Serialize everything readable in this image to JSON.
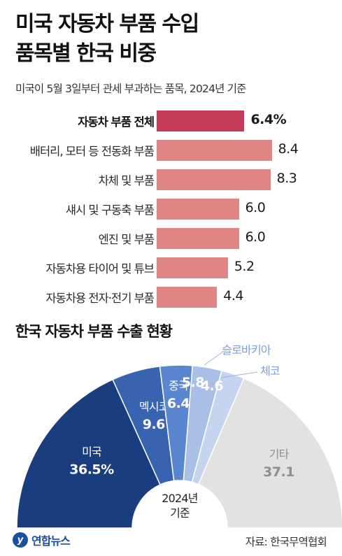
{
  "header": {
    "title_line1": "미국 자동차 부품 수입",
    "title_line2": "품목별 한국 비중",
    "subtitle": "미국이 5월 3일부터 관세 부과하는 품목, 2024년 기준"
  },
  "chart_data": [
    {
      "type": "bar",
      "orientation": "horizontal",
      "unit": "%",
      "categories": [
        "자동차 부품 전체",
        "배터리, 모터 등 전동화 부품",
        "차체 및 부품",
        "섀시 및 구동축 부품",
        "엔진 및 부품",
        "자동차용 타이어 및 튜브",
        "자동차용 전자·전기 부품"
      ],
      "values": [
        6.4,
        8.4,
        8.3,
        6.0,
        6.0,
        5.2,
        4.4
      ],
      "value_labels": [
        "6.4%",
        "8.4",
        "8.3",
        "6.0",
        "6.0",
        "5.2",
        "4.4"
      ],
      "highlight_index": 0,
      "colors": {
        "highlight": "#c23c5a",
        "bar": "#e08585"
      }
    },
    {
      "type": "pie",
      "style": "half-donut",
      "title": "한국 자동차 부품 수출 현황",
      "center_label": [
        "2024년",
        "기준"
      ],
      "unit": "%",
      "slices": [
        {
          "name": "미국",
          "value": 36.5,
          "label": "36.5%",
          "color": "#1a3d80"
        },
        {
          "name": "멕시코",
          "value": 9.6,
          "label": "9.6",
          "color": "#3763b0"
        },
        {
          "name": "중국",
          "value": 6.4,
          "label": "6.4",
          "color": "#5a85cf"
        },
        {
          "name": "슬로바키아",
          "value": 5.8,
          "label": "5.8",
          "color": "#a9bfe6"
        },
        {
          "name": "체코",
          "value": 4.6,
          "label": "4.6",
          "color": "#c6d5ef"
        },
        {
          "name": "기타",
          "value": 37.1,
          "label": "37.1",
          "color": "#e2e2e2"
        }
      ]
    }
  ],
  "footer": {
    "logo_text": "연합뉴스",
    "logo_mark": "y",
    "source": "자료: 한국무역협회"
  }
}
